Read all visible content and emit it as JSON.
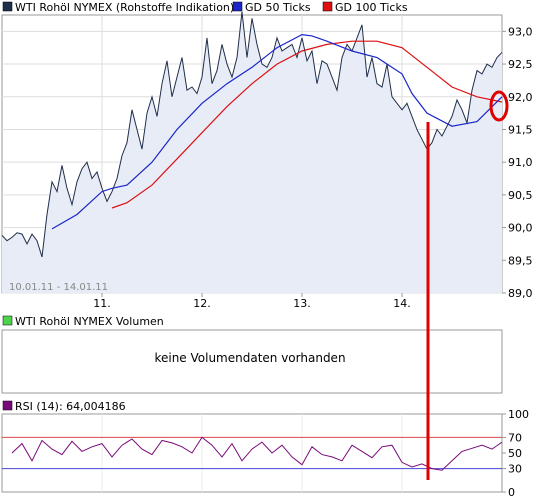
{
  "legend": {
    "price_label": "WTI Rohöl NYMEX (Rohstoffe Indikation)",
    "gd50_label": "GD 50 Ticks",
    "gd100_label": "GD 100 Ticks",
    "volume_label": "WTI Rohöl NYMEX Volumen",
    "rsi_label": "RSI (14): 64,004186"
  },
  "colors": {
    "price": "#1f2f4a",
    "price_fill": "#e8ecf7",
    "gd50": "#1a26c8",
    "gd100": "#dd1111",
    "volume_marker": "#4cd44c",
    "rsi": "#7a0a7a",
    "rsi_upper": "#dd4444",
    "rsi_lower": "#4444dd",
    "annotation": "#e00000"
  },
  "date_range": "10.01.11 - 14.01.11",
  "volume_message": "keine Volumendaten vorhanden",
  "chart_data": [
    {
      "type": "line",
      "title": "WTI Rohöl NYMEX (Rohstoffe Indikation)",
      "x_tick_labels": [
        "11.",
        "12.",
        "13.",
        "14."
      ],
      "y_tick_labels": [
        "93,0",
        "92,5",
        "92,0",
        "91,5",
        "91,0",
        "90,5",
        "90,0",
        "89,5",
        "89,0"
      ],
      "ylim": [
        89.0,
        93.25
      ],
      "grid": true,
      "legend_position": "top",
      "series": [
        {
          "name": "WTI Rohöl NYMEX (Rohstoffe Indikation)",
          "x": [
            0,
            0.05,
            0.1,
            0.15,
            0.2,
            0.25,
            0.3,
            0.35,
            0.4,
            0.45,
            0.5,
            0.55,
            0.6,
            0.65,
            0.7,
            0.75,
            0.8,
            0.85,
            0.9,
            0.95,
            1.0,
            1.05,
            1.1,
            1.15,
            1.2,
            1.25,
            1.3,
            1.35,
            1.4,
            1.45,
            1.5,
            1.55,
            1.6,
            1.65,
            1.7,
            1.75,
            1.8,
            1.85,
            1.9,
            1.95,
            2.0,
            2.05,
            2.1,
            2.15,
            2.2,
            2.25,
            2.3,
            2.35,
            2.4,
            2.45,
            2.5,
            2.55,
            2.6,
            2.65,
            2.7,
            2.75,
            2.8,
            2.85,
            2.9,
            2.95,
            3.0,
            3.05,
            3.1,
            3.15,
            3.2,
            3.25,
            3.3,
            3.35,
            3.4,
            3.45,
            3.5,
            3.55,
            3.6,
            3.65,
            3.7,
            3.75,
            3.8,
            3.85,
            3.9,
            3.95,
            4.0,
            4.05,
            4.1,
            4.15,
            4.2,
            4.25,
            4.3,
            4.35,
            4.4,
            4.45,
            4.5,
            4.55,
            4.6,
            4.65,
            4.7,
            4.75,
            4.8,
            4.85,
            4.9,
            4.95,
            5.0
          ],
          "y": [
            89.88,
            89.8,
            89.85,
            89.92,
            89.9,
            89.75,
            89.9,
            89.8,
            89.55,
            90.2,
            90.7,
            90.55,
            90.95,
            90.6,
            90.35,
            90.7,
            90.9,
            91.0,
            90.75,
            90.85,
            90.6,
            90.4,
            90.55,
            90.75,
            91.1,
            91.3,
            91.8,
            91.5,
            91.2,
            91.75,
            92.0,
            91.7,
            92.2,
            92.55,
            92.0,
            92.3,
            92.6,
            92.1,
            92.15,
            92.05,
            92.3,
            92.9,
            92.2,
            92.4,
            92.8,
            92.5,
            92.3,
            92.6,
            93.3,
            92.6,
            93.2,
            92.8,
            92.5,
            92.45,
            92.6,
            92.9,
            92.7,
            92.75,
            92.8,
            92.6,
            92.9,
            92.55,
            92.7,
            92.2,
            92.55,
            92.5,
            92.3,
            92.1,
            92.6,
            92.8,
            92.7,
            92.9,
            93.1,
            92.3,
            92.6,
            92.2,
            92.15,
            92.5,
            92.0,
            91.9,
            91.8,
            91.9,
            91.7,
            91.5,
            91.35,
            91.2,
            91.3,
            91.5,
            91.4,
            91.55,
            91.7,
            91.95,
            91.8,
            91.6,
            92.1,
            92.4,
            92.35,
            92.5,
            92.45,
            92.6,
            92.68
          ]
        },
        {
          "name": "GD 50 Ticks",
          "x": [
            0.5,
            0.75,
            1.0,
            1.1,
            1.25,
            1.5,
            1.75,
            2.0,
            2.25,
            2.5,
            2.75,
            3.0,
            3.1,
            3.25,
            3.5,
            3.75,
            4.0,
            4.1,
            4.25,
            4.5,
            4.75,
            5.0
          ],
          "y": [
            89.98,
            90.2,
            90.55,
            90.6,
            90.65,
            91.0,
            91.5,
            91.9,
            92.2,
            92.45,
            92.75,
            92.95,
            92.93,
            92.85,
            92.7,
            92.6,
            92.35,
            92.05,
            91.75,
            91.55,
            91.62,
            92.0
          ]
        },
        {
          "name": "GD 100 Ticks",
          "x": [
            1.1,
            1.25,
            1.5,
            1.75,
            2.0,
            2.25,
            2.5,
            2.75,
            3.0,
            3.25,
            3.5,
            3.75,
            4.0,
            4.25,
            4.5,
            4.75,
            5.0
          ],
          "y": [
            90.3,
            90.38,
            90.65,
            91.05,
            91.45,
            91.85,
            92.2,
            92.5,
            92.7,
            92.8,
            92.85,
            92.85,
            92.75,
            92.45,
            92.15,
            92.0,
            91.92
          ]
        }
      ]
    },
    {
      "type": "line",
      "title": "RSI (14): 64,004186",
      "y_tick_labels": [
        "100",
        "70",
        "50",
        "30",
        "0"
      ],
      "ylim": [
        0,
        100
      ],
      "reference_lines": [
        70,
        30
      ],
      "series": [
        {
          "name": "RSI (14)",
          "x": [
            0.1,
            0.2,
            0.3,
            0.4,
            0.5,
            0.6,
            0.7,
            0.8,
            0.9,
            1.0,
            1.1,
            1.2,
            1.3,
            1.4,
            1.5,
            1.6,
            1.7,
            1.8,
            1.9,
            2.0,
            2.1,
            2.2,
            2.3,
            2.4,
            2.5,
            2.6,
            2.7,
            2.8,
            2.9,
            3.0,
            3.1,
            3.2,
            3.3,
            3.4,
            3.5,
            3.6,
            3.7,
            3.8,
            3.9,
            4.0,
            4.1,
            4.2,
            4.3,
            4.4,
            4.5,
            4.6,
            4.7,
            4.8,
            4.9,
            5.0
          ],
          "y": [
            50,
            62,
            40,
            66,
            55,
            48,
            65,
            52,
            58,
            62,
            45,
            60,
            68,
            55,
            48,
            66,
            63,
            58,
            50,
            70,
            60,
            45,
            62,
            40,
            55,
            64,
            50,
            60,
            45,
            35,
            58,
            48,
            45,
            40,
            60,
            52,
            44,
            58,
            60,
            38,
            32,
            36,
            30,
            28,
            40,
            52,
            56,
            60,
            55,
            64
          ]
        }
      ]
    }
  ]
}
